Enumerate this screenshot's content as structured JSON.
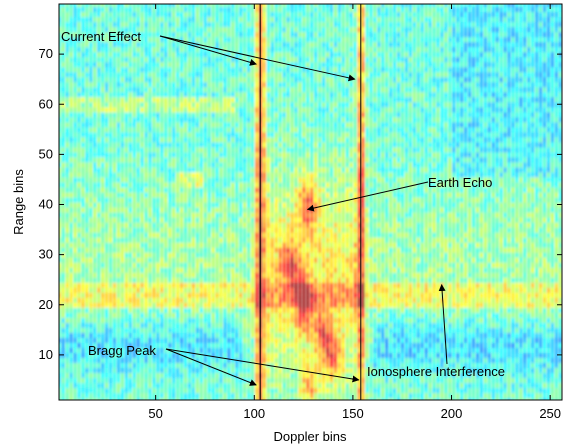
{
  "chart_data": {
    "type": "heatmap",
    "xlabel": "Doppler bins",
    "ylabel": "Range bins",
    "xlim": [
      1,
      256
    ],
    "ylim": [
      1,
      80
    ],
    "x_ticks": [
      50,
      100,
      150,
      200,
      250
    ],
    "y_ticks": [
      10,
      20,
      30,
      40,
      50,
      60,
      70
    ],
    "colormap": "jet",
    "vertical_lines_x": [
      103,
      154
    ],
    "bands": [
      {
        "center_x": 103,
        "width": 2.5,
        "intensity": 0.92
      },
      {
        "center_x": 154,
        "width": 2.0,
        "intensity": 0.82
      }
    ],
    "blobs": [
      {
        "x": 127,
        "y": 40,
        "intensity": 0.7
      },
      {
        "x": 125,
        "y": 20,
        "intensity": 0.78
      },
      {
        "x": 118,
        "y": 28,
        "intensity": 0.6
      },
      {
        "x": 135,
        "y": 14,
        "intensity": 0.62
      },
      {
        "x": 140,
        "y": 9,
        "intensity": 0.58
      },
      {
        "x": 128,
        "y": 4,
        "intensity": 0.55
      }
    ],
    "annotations": [
      {
        "id": "current-effect",
        "text": "Current Effect",
        "targets": [
          [
            101,
            68
          ],
          [
            151,
            65
          ]
        ]
      },
      {
        "id": "earth-echo",
        "text": "Earth Echo",
        "targets": [
          [
            127,
            39
          ]
        ]
      },
      {
        "id": "bragg-peak",
        "text": "Bragg Peak",
        "targets": [
          [
            101,
            4
          ],
          [
            153,
            5
          ]
        ]
      },
      {
        "id": "ionosphere-interference",
        "text": "Ionosphere Interference",
        "targets": [
          [
            195,
            24
          ]
        ]
      }
    ]
  },
  "colors": {
    "background": "#ffffff",
    "axis": "#000000",
    "annotation_line": "#000000"
  }
}
